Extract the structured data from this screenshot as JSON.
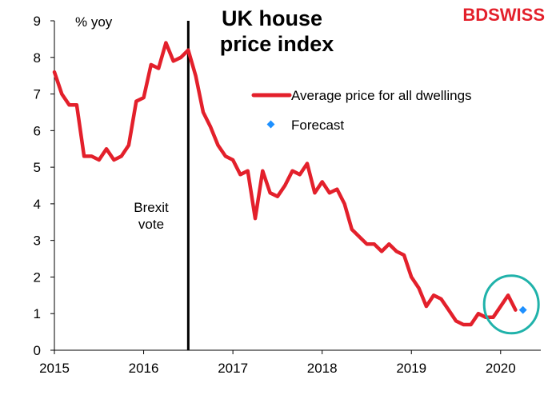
{
  "brand": {
    "prefix": "BD",
    "suffix": "SWISS",
    "color": "#e3202b"
  },
  "chart_data": {
    "type": "line",
    "title_lines": [
      "UK house",
      "price index"
    ],
    "unit_label": "% yoy",
    "xlim": [
      2015,
      2020.45
    ],
    "ylim": [
      0,
      9
    ],
    "y_ticks": [
      0,
      1,
      2,
      3,
      4,
      5,
      6,
      7,
      8,
      9
    ],
    "x_ticks": [
      2015,
      2016,
      2017,
      2018,
      2019,
      2020
    ],
    "x_tick_labels": [
      "2015",
      "2016",
      "2017",
      "2018",
      "2019",
      "2020"
    ],
    "grid": false,
    "legend_position": "top-right",
    "series": [
      {
        "name": "Average price for all dwellings",
        "color": "#e3202b",
        "style": "line",
        "points": [
          [
            2015.0,
            7.6
          ],
          [
            2015.083,
            7.0
          ],
          [
            2015.167,
            6.7
          ],
          [
            2015.25,
            6.7
          ],
          [
            2015.333,
            5.3
          ],
          [
            2015.417,
            5.3
          ],
          [
            2015.5,
            5.2
          ],
          [
            2015.583,
            5.5
          ],
          [
            2015.667,
            5.2
          ],
          [
            2015.75,
            5.3
          ],
          [
            2015.833,
            5.6
          ],
          [
            2015.917,
            6.8
          ],
          [
            2016.0,
            6.9
          ],
          [
            2016.083,
            7.8
          ],
          [
            2016.167,
            7.7
          ],
          [
            2016.25,
            8.4
          ],
          [
            2016.333,
            7.9
          ],
          [
            2016.417,
            8.0
          ],
          [
            2016.5,
            8.2
          ],
          [
            2016.583,
            7.5
          ],
          [
            2016.667,
            6.5
          ],
          [
            2016.75,
            6.1
          ],
          [
            2016.833,
            5.6
          ],
          [
            2016.917,
            5.3
          ],
          [
            2017.0,
            5.2
          ],
          [
            2017.083,
            4.8
          ],
          [
            2017.167,
            4.9
          ],
          [
            2017.25,
            3.6
          ],
          [
            2017.333,
            4.9
          ],
          [
            2017.417,
            4.3
          ],
          [
            2017.5,
            4.2
          ],
          [
            2017.583,
            4.5
          ],
          [
            2017.667,
            4.9
          ],
          [
            2017.75,
            4.8
          ],
          [
            2017.833,
            5.1
          ],
          [
            2017.917,
            4.3
          ],
          [
            2018.0,
            4.6
          ],
          [
            2018.083,
            4.3
          ],
          [
            2018.167,
            4.4
          ],
          [
            2018.25,
            4.0
          ],
          [
            2018.333,
            3.3
          ],
          [
            2018.417,
            3.1
          ],
          [
            2018.5,
            2.9
          ],
          [
            2018.583,
            2.9
          ],
          [
            2018.667,
            2.7
          ],
          [
            2018.75,
            2.9
          ],
          [
            2018.833,
            2.7
          ],
          [
            2018.917,
            2.6
          ],
          [
            2019.0,
            2.0
          ],
          [
            2019.083,
            1.7
          ],
          [
            2019.167,
            1.2
          ],
          [
            2019.25,
            1.5
          ],
          [
            2019.333,
            1.4
          ],
          [
            2019.417,
            1.1
          ],
          [
            2019.5,
            0.8
          ],
          [
            2019.583,
            0.7
          ],
          [
            2019.667,
            0.7
          ],
          [
            2019.75,
            1.0
          ],
          [
            2019.833,
            0.9
          ],
          [
            2019.917,
            0.9
          ],
          [
            2020.0,
            1.2
          ],
          [
            2020.083,
            1.5
          ],
          [
            2020.167,
            1.1
          ]
        ]
      },
      {
        "name": "Forecast",
        "color": "#1e90ff",
        "style": "marker",
        "points": [
          [
            2020.25,
            1.1
          ]
        ]
      }
    ],
    "annotations": {
      "vertical_line": {
        "x": 2016.5,
        "color": "#000000",
        "label_lines": [
          "Brexit",
          "vote"
        ]
      },
      "highlight_circle": {
        "cx": 2020.12,
        "cy": 1.25,
        "color": "#20b2aa"
      }
    }
  }
}
